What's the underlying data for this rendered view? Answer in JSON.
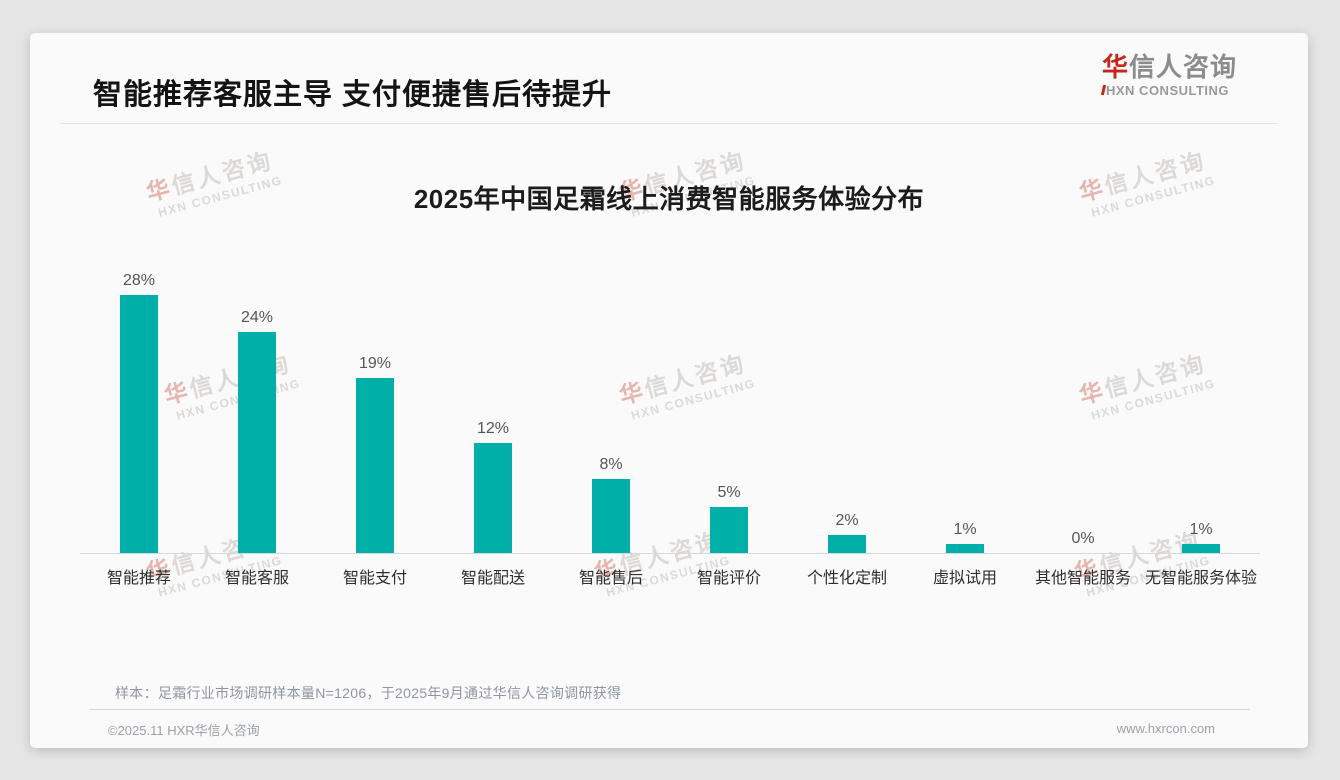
{
  "page": {
    "header": {
      "title": "智能推荐客服主导 支付便捷售后待提升",
      "logo": {
        "cn": "华信人咨询",
        "en": "HXN CONSULTING"
      }
    },
    "footer": {
      "note": "样本：足霜行业市场调研样本量N=1206，于2025年9月通过华信人咨询调研获得",
      "copyright": "©2025.11 HXR华信人咨询",
      "website": "www.hxrcon.com"
    },
    "watermark": {
      "cn": "华信人咨询",
      "en": "HXN CONSULTING"
    }
  },
  "chart_data": {
    "type": "bar",
    "title": "2025年中国足霜线上消费智能服务体验分布",
    "categories": [
      "智能推荐",
      "智能客服",
      "智能支付",
      "智能配送",
      "智能售后",
      "智能评价",
      "个性化定制",
      "虚拟试用",
      "其他智能服务",
      "无智能服务体验"
    ],
    "values": [
      28,
      24,
      19,
      12,
      8,
      5,
      2,
      1,
      0,
      1
    ],
    "value_labels": [
      "28%",
      "24%",
      "19%",
      "12%",
      "8%",
      "5%",
      "2%",
      "1%",
      "0%",
      "1%"
    ],
    "xlabel": "",
    "ylabel": "",
    "ylim": [
      0,
      30
    ],
    "grid": false,
    "legend": "none",
    "bar_color": "#00b0a8"
  },
  "colors": {
    "bar_teal": "#00b0a8",
    "accent_red": "#c4271b",
    "title_text": "#141414",
    "card_bg": "#fafafa",
    "page_bg": "#e6e6e6"
  }
}
